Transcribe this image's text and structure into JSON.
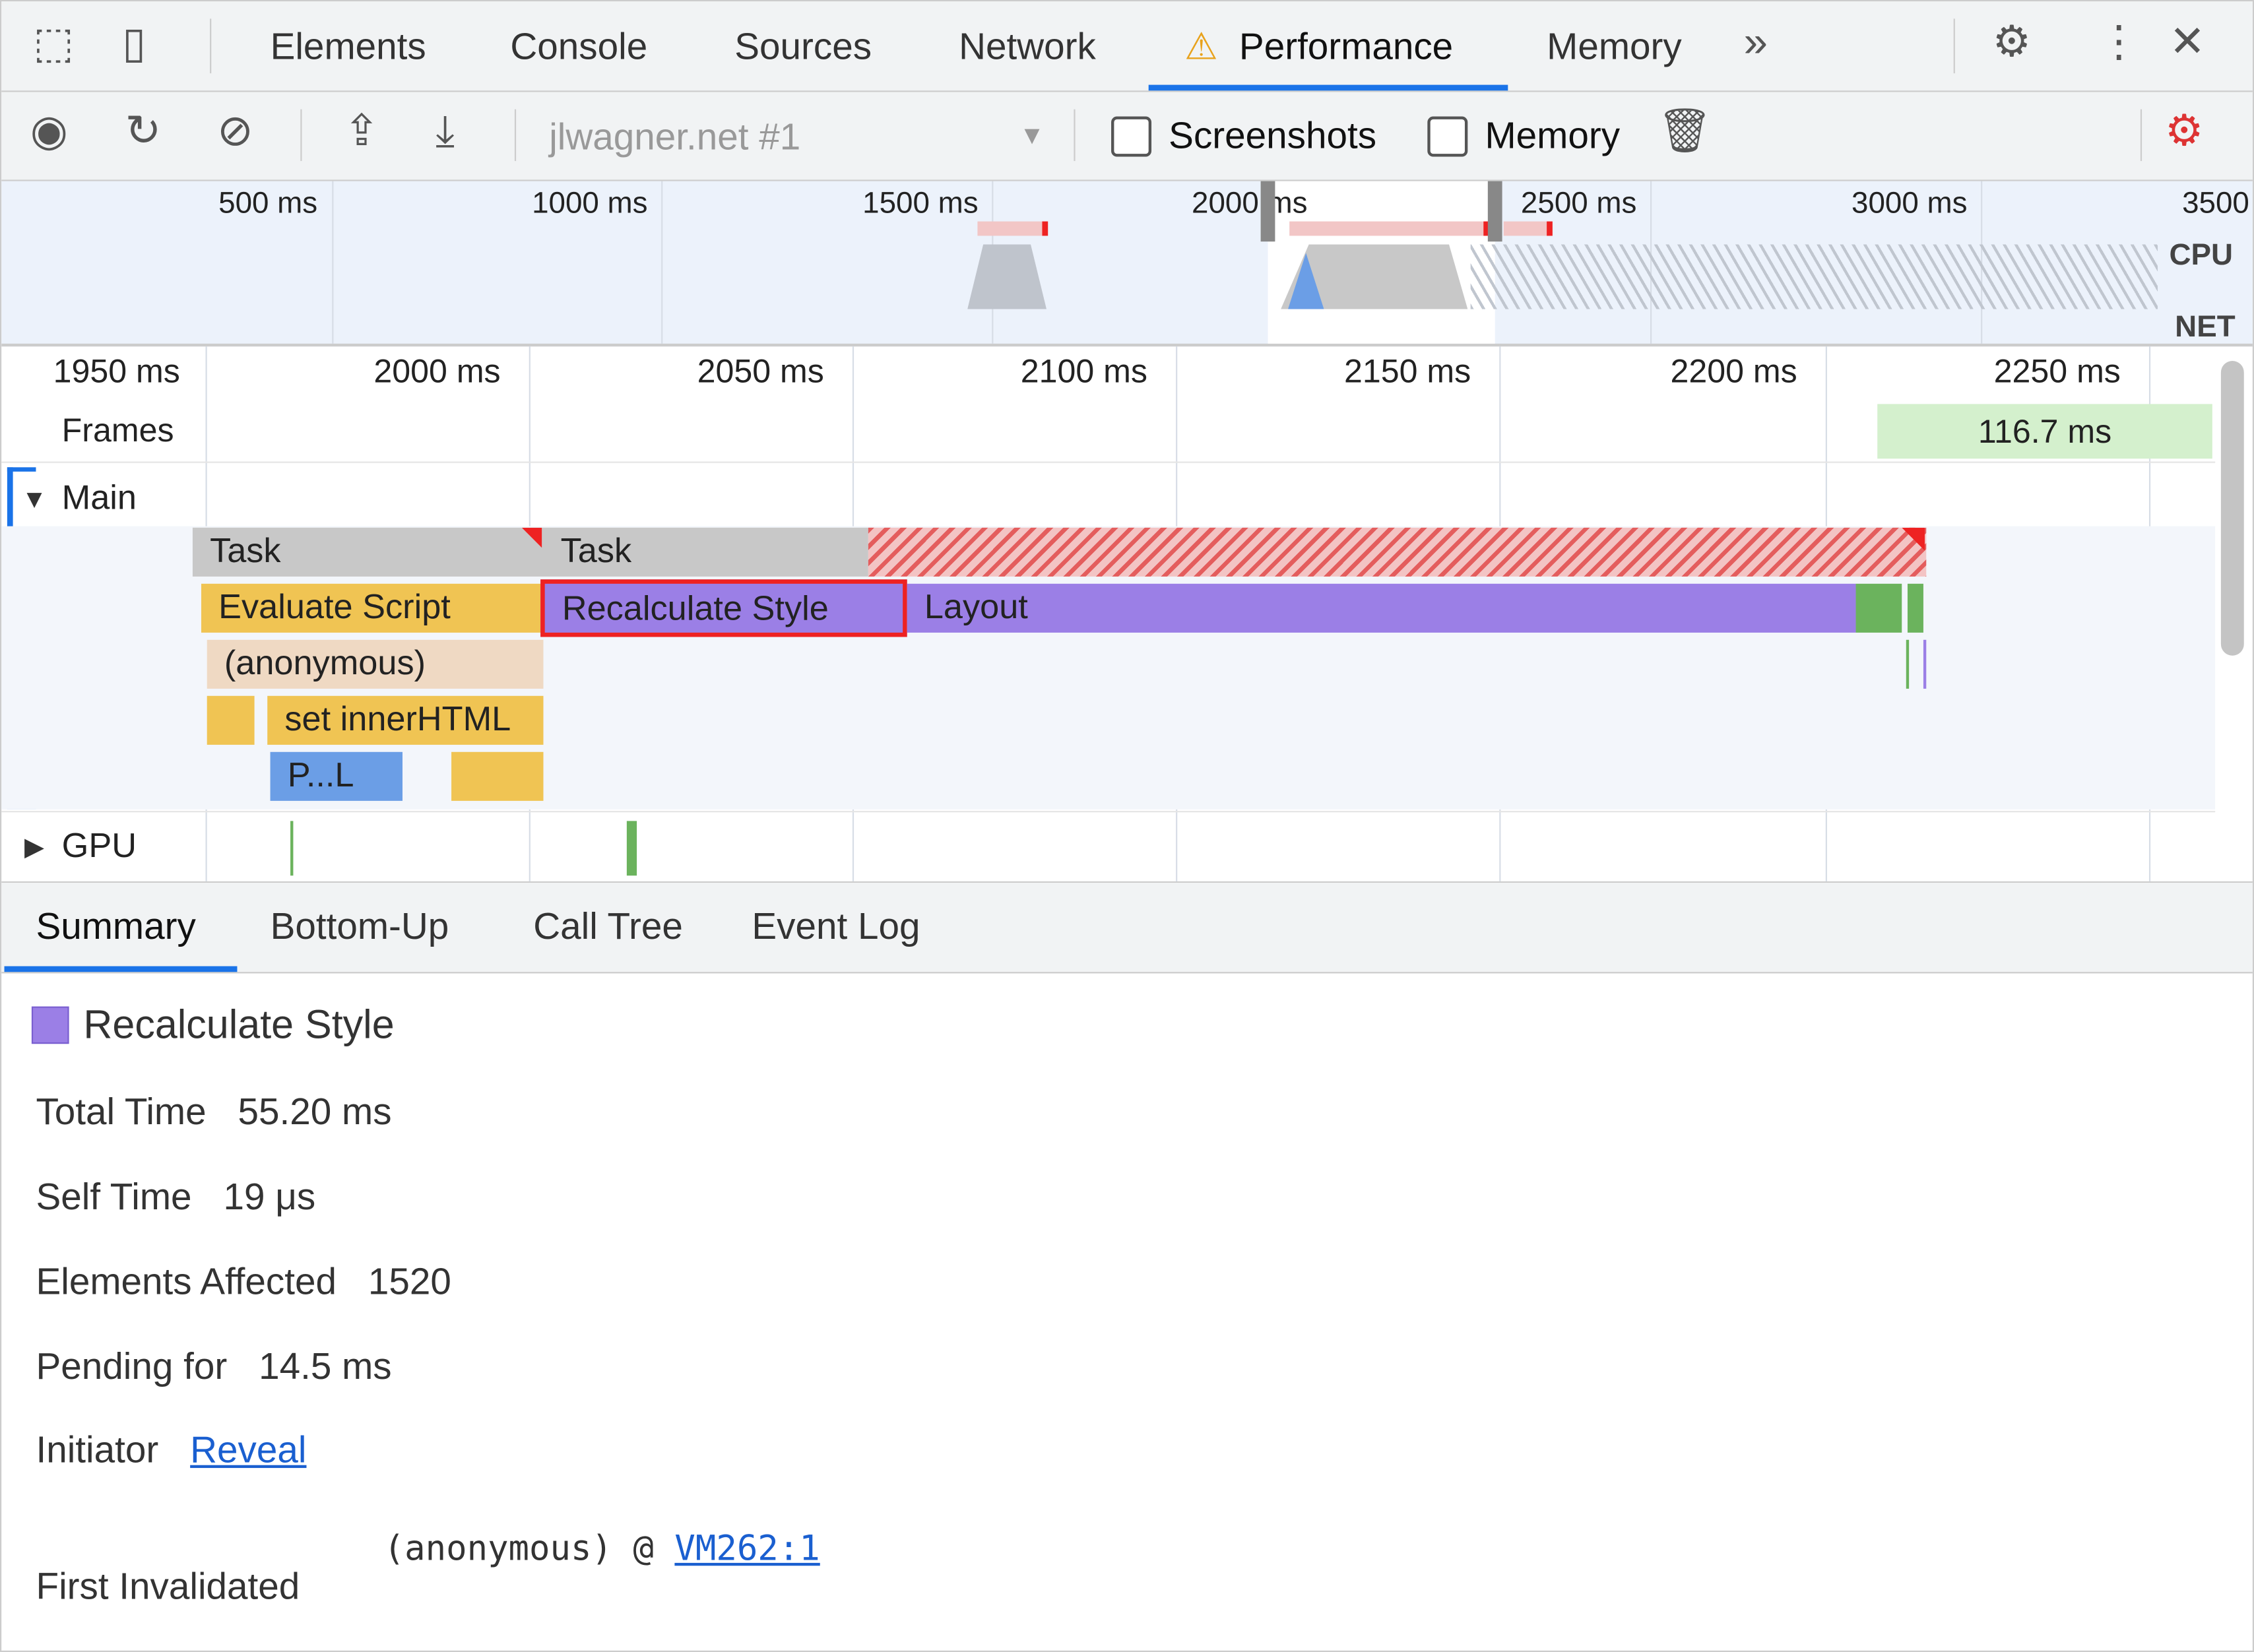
{
  "tabs": [
    "Elements",
    "Console",
    "Sources",
    "Network",
    "Performance",
    "Memory"
  ],
  "active_tab": "Performance",
  "toolbar": {
    "profile_select": "jlwagner.net #1",
    "screenshots_label": "Screenshots",
    "memory_label": "Memory",
    "screenshots_checked": false,
    "memory_checked": false
  },
  "overview": {
    "ticks": [
      "500 ms",
      "1000 ms",
      "1500 ms",
      "2000 ms",
      "2500 ms",
      "3000 ms",
      "3500"
    ],
    "cpu_label": "CPU",
    "net_label": "NET"
  },
  "timeline": {
    "ticks": [
      "1950 ms",
      "2000 ms",
      "2050 ms",
      "2100 ms",
      "2150 ms",
      "2200 ms",
      "2250 ms"
    ],
    "frames_label": "Frames",
    "frame_value": "116.7 ms",
    "main_label": "Main",
    "gpu_label": "GPU"
  },
  "flame": {
    "task1": "Task",
    "task2": "Task",
    "evaluate_script": "Evaluate Script",
    "recalc_style": "Recalculate Style",
    "layout": "Layout",
    "anonymous": "(anonymous)",
    "set_innerhtml": "set innerHTML",
    "parse": "P...L"
  },
  "colors": {
    "task": "#c8c8c8",
    "script": "#f0c453",
    "rendering": "#9b7fe6",
    "painting": "#6bb35d",
    "parse": "#6b9ee6",
    "long_task": "#e33",
    "accent": "#1a73e8"
  },
  "bottom_tabs": [
    "Summary",
    "Bottom-Up",
    "Call Tree",
    "Event Log"
  ],
  "summary": {
    "title": "Recalculate Style",
    "total_time_label": "Total Time",
    "total_time": "55.20 ms",
    "self_time_label": "Self Time",
    "self_time": "19 μs",
    "elements_label": "Elements Affected",
    "elements": "1520",
    "pending_label": "Pending for",
    "pending": "14.5 ms",
    "initiator_label": "Initiator",
    "initiator_link": "Reveal",
    "first_invalidated_label": "First Invalidated",
    "first_invalidated_fn": "(anonymous) @ ",
    "first_invalidated_link": "VM262:1"
  }
}
